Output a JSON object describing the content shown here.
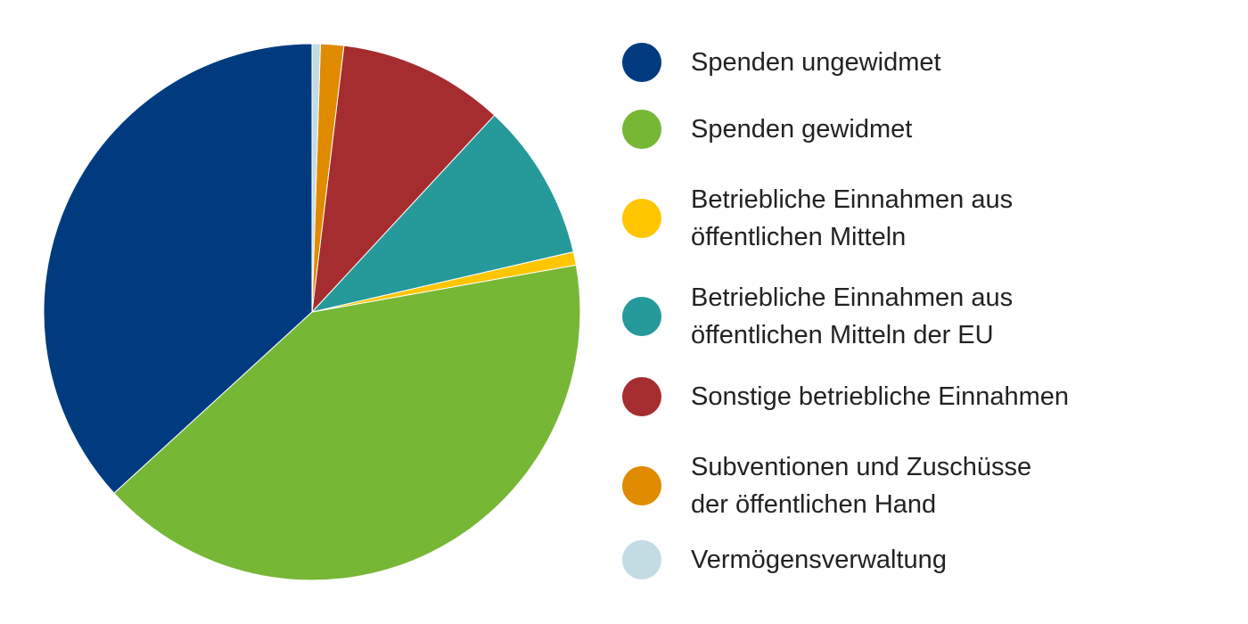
{
  "chart_data": {
    "type": "pie",
    "categories": [
      "Spenden ungewidmet",
      "Spenden gewidmet",
      "Betriebliche Einnahmen aus\nöffentlichen Mitteln",
      "Betriebliche Einnahmen aus\nöffentlichen Mitteln der EU",
      "Sonstige betriebliche Einnahmen",
      "Subventionen und Zuschüsse\nder öffentlichen Hand",
      "Vermögensverwaltung"
    ],
    "values": [
      36.8,
      41,
      0.8,
      9.5,
      10,
      1.4,
      0.5
    ],
    "colors": [
      "#003b80",
      "#77b736",
      "#ffc600",
      "#26999a",
      "#a62d2f",
      "#e08a00",
      "#c3dbe3"
    ],
    "legend": "right"
  }
}
